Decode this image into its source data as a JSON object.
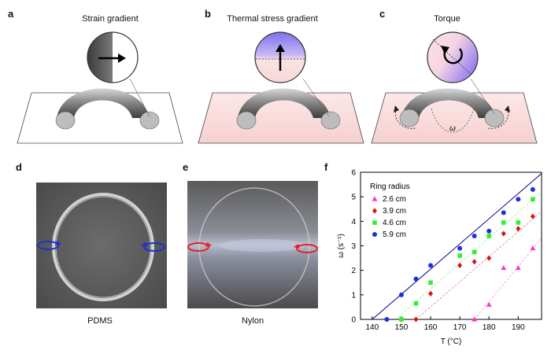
{
  "panels": {
    "a": {
      "letter": "a",
      "title": "Strain gradient"
    },
    "b": {
      "letter": "b",
      "title": "Thermal stress gradient"
    },
    "c": {
      "letter": "c",
      "title": "Torque",
      "omega_label": "ω"
    },
    "d": {
      "letter": "d",
      "caption": "PDMS"
    },
    "e": {
      "letter": "e",
      "caption": "Nylon"
    },
    "f": {
      "letter": "f"
    }
  },
  "colors": {
    "pink_plate": "#f8dcdc",
    "purple": "#8a7ff0",
    "blue_arrow": "#1f2fd0",
    "red_arrow": "#e0202a",
    "series": [
      "#ff33cc",
      "#dd1111",
      "#33ee33",
      "#1a2fe0"
    ],
    "fit_line": "#00008b"
  },
  "chart_data": {
    "type": "scatter",
    "xlabel": "T (°C)",
    "ylabel": "ω (s⁻¹)",
    "xlim": [
      136,
      198
    ],
    "ylim": [
      0,
      6
    ],
    "xticks": [
      140,
      150,
      160,
      170,
      180,
      190
    ],
    "yticks": [
      0,
      1,
      2,
      3,
      4,
      5,
      6
    ],
    "legend_title": "Ring radius",
    "legend_position": "top-left",
    "series": [
      {
        "name": "2.6 cm",
        "marker": "triangle",
        "x": [
          175,
          180,
          185,
          190,
          195
        ],
        "y": [
          0,
          0.6,
          2.1,
          2.1,
          2.9
        ],
        "fit": [
          [
            175,
            0
          ],
          [
            198,
            3.3
          ]
        ]
      },
      {
        "name": "3.9 cm",
        "marker": "diamond",
        "x": [
          150,
          155,
          160,
          170,
          175,
          180,
          185,
          190,
          195
        ],
        "y": [
          0,
          0,
          1.05,
          2.2,
          2.35,
          2.5,
          3.5,
          3.7,
          4.2
        ],
        "fit": [
          [
            155,
            0
          ],
          [
            198,
            4.4
          ]
        ]
      },
      {
        "name": "4.6 cm",
        "marker": "square",
        "x": [
          150,
          155,
          160,
          170,
          175,
          180,
          185,
          190,
          195
        ],
        "y": [
          0,
          0.65,
          1.5,
          2.6,
          2.75,
          3.4,
          3.95,
          3.95,
          4.9
        ],
        "fit": [
          [
            148,
            0
          ],
          [
            198,
            5.2
          ]
        ]
      },
      {
        "name": "5.9 cm",
        "marker": "circle",
        "x": [
          145,
          150,
          155,
          160,
          170,
          175,
          180,
          185,
          190,
          195
        ],
        "y": [
          0,
          1.0,
          1.65,
          2.2,
          2.9,
          3.4,
          3.6,
          4.35,
          4.9,
          5.3
        ],
        "fit": [
          [
            140,
            0
          ],
          [
            198,
            5.95
          ]
        ]
      }
    ]
  }
}
